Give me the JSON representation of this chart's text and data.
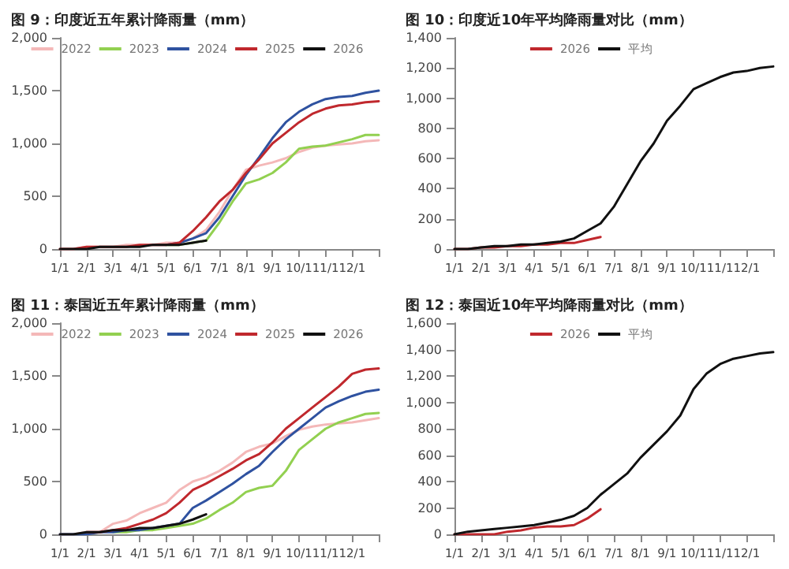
{
  "chart_data": [
    {
      "type": "line",
      "title": "图 9：印度近五年累计降雨量（mm）",
      "categories": [
        "1/1",
        null,
        "2/1",
        null,
        "3/1",
        null,
        "4/1",
        null,
        "5/1",
        null,
        "6/1",
        null,
        "7/1",
        null,
        "8/1",
        null,
        "9/1",
        null,
        "10/1",
        null,
        "11/1",
        null,
        "12/1",
        null,
        null
      ],
      "ylim": [
        0,
        2000
      ],
      "yticks": [
        0,
        500,
        {
          "value": 1000,
          "label": "1,000"
        },
        {
          "value": 1500,
          "label": "1,500"
        },
        {
          "value": 2000,
          "label": "2,000"
        }
      ],
      "legend": "top",
      "marker": "none",
      "series": [
        {
          "name": "2022",
          "color": "#f4b8b8",
          "values": [
            0,
            0,
            20,
            20,
            20,
            40,
            40,
            40,
            60,
            60,
            100,
            180,
            350,
            560,
            750,
            790,
            820,
            860,
            920,
            960,
            980,
            990,
            1000,
            1020,
            1030
          ]
        },
        {
          "name": "2023",
          "color": "#92d050",
          "values": [
            null,
            null,
            null,
            null,
            null,
            null,
            null,
            null,
            40,
            40,
            60,
            80,
            250,
            450,
            620,
            660,
            720,
            820,
            950,
            970,
            980,
            1010,
            1040,
            1080,
            1080
          ]
        },
        {
          "name": "2024",
          "color": "#2f52a0",
          "values": [
            null,
            null,
            null,
            null,
            null,
            null,
            null,
            null,
            40,
            60,
            100,
            150,
            300,
            500,
            700,
            870,
            1050,
            1200,
            1300,
            1370,
            1420,
            1440,
            1450,
            1480,
            1500
          ]
        },
        {
          "name": "2025",
          "color": "#c0282d",
          "values": [
            0,
            0,
            20,
            20,
            20,
            20,
            40,
            40,
            40,
            60,
            170,
            300,
            450,
            560,
            720,
            850,
            1000,
            1100,
            1200,
            1280,
            1330,
            1360,
            1370,
            1390,
            1400
          ]
        },
        {
          "name": "2026",
          "color": "#111111",
          "values": [
            0,
            0,
            0,
            20,
            20,
            20,
            20,
            40,
            40,
            40,
            60,
            80,
            null,
            null,
            null,
            null,
            null,
            null,
            null,
            null,
            null,
            null,
            null,
            null,
            null
          ]
        }
      ]
    },
    {
      "type": "line",
      "title": "图 10：印度近10年平均降雨量对比（mm）",
      "categories": [
        "1/1",
        null,
        "2/1",
        null,
        "3/1",
        null,
        "4/1",
        null,
        "5/1",
        null,
        "6/1",
        null,
        "7/1",
        null,
        "8/1",
        null,
        "9/1",
        null,
        "10/1",
        null,
        "11/1",
        null,
        "12/1",
        null,
        null
      ],
      "ylim": [
        0,
        1400
      ],
      "yticks": [
        0,
        200,
        400,
        600,
        800,
        {
          "value": 1000,
          "label": "1,000"
        },
        {
          "value": 1200,
          "label": "1,200"
        },
        {
          "value": 1400,
          "label": "1,400"
        }
      ],
      "legend": "top",
      "marker": "none",
      "series": [
        {
          "name": "2026",
          "color": "#c0282d",
          "values": [
            0,
            0,
            10,
            10,
            20,
            20,
            30,
            30,
            40,
            40,
            60,
            80,
            null,
            null,
            null,
            null,
            null,
            null,
            null,
            null,
            null,
            null,
            null,
            null,
            null
          ]
        },
        {
          "name": "平均",
          "color": "#111111",
          "values": [
            0,
            0,
            10,
            20,
            20,
            30,
            30,
            40,
            50,
            70,
            120,
            170,
            280,
            430,
            580,
            700,
            850,
            950,
            1060,
            1100,
            1140,
            1170,
            1180,
            1200,
            1210
          ]
        }
      ]
    },
    {
      "type": "line",
      "title": "图 11：泰国近五年累计降雨量（mm）",
      "categories": [
        "1/1",
        null,
        "2/1",
        null,
        "3/1",
        null,
        "4/1",
        null,
        "5/1",
        null,
        "6/1",
        null,
        "7/1",
        null,
        "8/1",
        null,
        "9/1",
        null,
        "10/1",
        null,
        "11/1",
        null,
        "12/1",
        null,
        null
      ],
      "ylim": [
        0,
        2000
      ],
      "yticks": [
        0,
        500,
        {
          "value": 1000,
          "label": "1,000"
        },
        {
          "value": 1500,
          "label": "1,500"
        },
        {
          "value": 2000,
          "label": "2,000"
        }
      ],
      "legend": "top",
      "marker": "none",
      "series": [
        {
          "name": "2022",
          "color": "#f4b8b8",
          "values": [
            0,
            0,
            20,
            20,
            100,
            130,
            200,
            250,
            300,
            420,
            500,
            540,
            600,
            680,
            780,
            830,
            860,
            930,
            990,
            1020,
            1040,
            1050,
            1060,
            1080,
            1100
          ]
        },
        {
          "name": "2023",
          "color": "#92d050",
          "values": [
            null,
            null,
            null,
            null,
            20,
            20,
            40,
            40,
            60,
            80,
            100,
            150,
            230,
            300,
            400,
            440,
            460,
            600,
            800,
            900,
            1000,
            1060,
            1100,
            1140,
            1150
          ]
        },
        {
          "name": "2024",
          "color": "#2f52a0",
          "values": [
            0,
            0,
            0,
            20,
            20,
            40,
            40,
            60,
            80,
            100,
            250,
            320,
            400,
            480,
            570,
            650,
            780,
            900,
            1000,
            1100,
            1200,
            1260,
            1310,
            1350,
            1370
          ]
        },
        {
          "name": "2025",
          "color": "#c0282d",
          "values": [
            null,
            null,
            20,
            20,
            40,
            60,
            100,
            140,
            200,
            300,
            420,
            480,
            550,
            620,
            700,
            760,
            870,
            1000,
            1100,
            1200,
            1300,
            1400,
            1520,
            1560,
            1570
          ]
        },
        {
          "name": "2026",
          "color": "#111111",
          "values": [
            0,
            0,
            20,
            20,
            40,
            40,
            60,
            60,
            80,
            100,
            140,
            190,
            null,
            null,
            null,
            null,
            null,
            null,
            null,
            null,
            null,
            null,
            null,
            null,
            null
          ]
        }
      ]
    },
    {
      "type": "line",
      "title": "图 12：泰国近10年平均降雨量对比（mm）",
      "categories": [
        "1/1",
        null,
        "2/1",
        null,
        "3/1",
        null,
        "4/1",
        null,
        "5/1",
        null,
        "6/1",
        null,
        "7/1",
        null,
        "8/1",
        null,
        "9/1",
        null,
        "10/1",
        null,
        "11/1",
        null,
        "12/1",
        null,
        null
      ],
      "ylim": [
        0,
        1600
      ],
      "yticks": [
        0,
        200,
        400,
        600,
        800,
        {
          "value": 1000,
          "label": "1,000"
        },
        {
          "value": 1200,
          "label": "1,200"
        },
        {
          "value": 1400,
          "label": "1,400"
        },
        {
          "value": 1600,
          "label": "1,600"
        }
      ],
      "legend": "top",
      "marker": "none",
      "series": [
        {
          "name": "2026",
          "color": "#c0282d",
          "values": [
            0,
            0,
            0,
            0,
            20,
            30,
            50,
            60,
            60,
            70,
            120,
            190,
            null,
            null,
            null,
            null,
            null,
            null,
            null,
            null,
            null,
            null,
            null,
            null,
            null
          ]
        },
        {
          "name": "平均",
          "color": "#111111",
          "values": [
            0,
            20,
            30,
            40,
            50,
            60,
            70,
            90,
            110,
            140,
            200,
            300,
            380,
            460,
            580,
            680,
            780,
            900,
            1100,
            1220,
            1290,
            1330,
            1350,
            1370,
            1380
          ]
        }
      ]
    }
  ]
}
